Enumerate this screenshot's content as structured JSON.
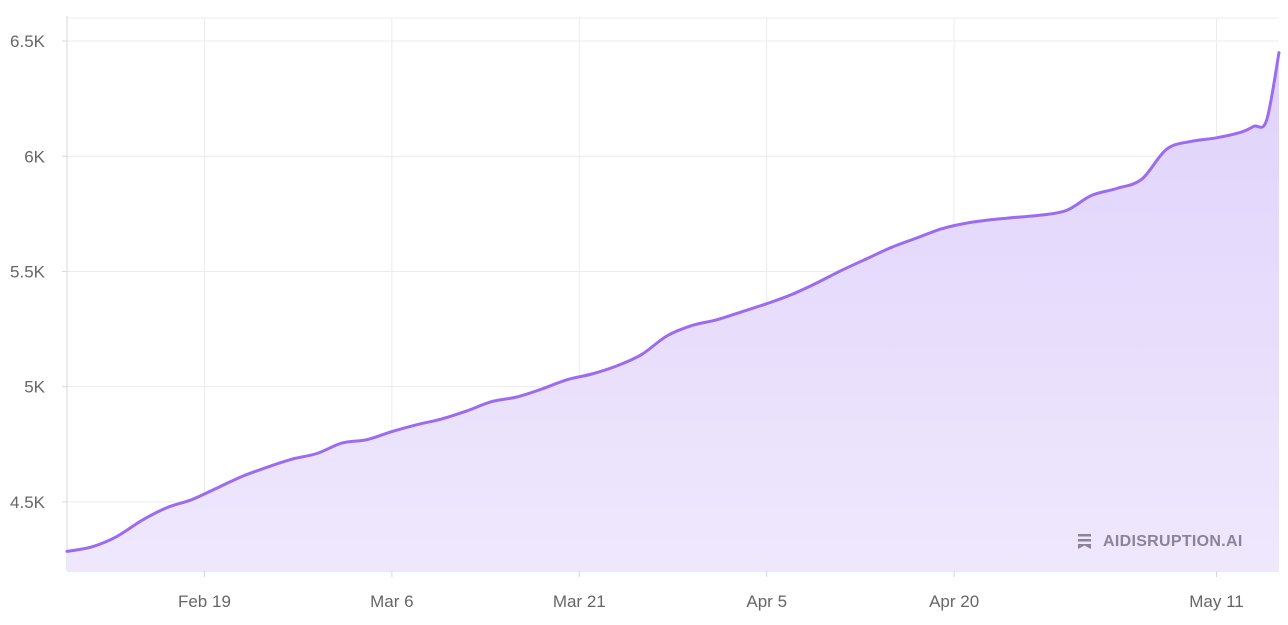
{
  "chart_data": {
    "type": "area",
    "title": "",
    "xlabel": "",
    "ylabel": "",
    "grid": true,
    "colors": {
      "line": "#9b6cf2",
      "fill_top": "#e0d2fb",
      "fill_bottom": "#efe8fd",
      "grid": "#ececf0",
      "axis": "#d9d3e6"
    },
    "x_range": [
      "2025-02-08",
      "2025-05-16"
    ],
    "y_range": [
      4200,
      6600
    ],
    "y_ticks": [
      4500,
      5000,
      5500,
      6000,
      6500
    ],
    "y_tick_labels": [
      "4.5K",
      "5K",
      "5.5K",
      "6K",
      "6.5K"
    ],
    "x_ticks": [
      "2025-02-19",
      "2025-03-06",
      "2025-03-21",
      "2025-04-05",
      "2025-04-20",
      "2025-05-11"
    ],
    "x_tick_labels": [
      "Feb 19",
      "Mar 6",
      "Mar 21",
      "Apr 5",
      "Apr 20",
      "May 11"
    ],
    "series": [
      {
        "x": [
          "2025-02-08",
          "2025-02-10",
          "2025-02-12",
          "2025-02-14",
          "2025-02-16",
          "2025-02-18",
          "2025-02-20",
          "2025-02-22",
          "2025-02-24",
          "2025-02-26",
          "2025-02-28",
          "2025-03-02",
          "2025-03-04",
          "2025-03-06",
          "2025-03-08",
          "2025-03-10",
          "2025-03-12",
          "2025-03-14",
          "2025-03-16",
          "2025-03-18",
          "2025-03-20",
          "2025-03-22",
          "2025-03-24",
          "2025-03-26",
          "2025-03-28",
          "2025-03-30",
          "2025-04-01",
          "2025-04-03",
          "2025-04-05",
          "2025-04-07",
          "2025-04-09",
          "2025-04-11",
          "2025-04-13",
          "2025-04-15",
          "2025-04-17",
          "2025-04-19",
          "2025-04-21",
          "2025-04-23",
          "2025-04-25",
          "2025-04-27",
          "2025-04-29",
          "2025-05-01",
          "2025-05-03",
          "2025-05-05",
          "2025-05-07",
          "2025-05-09",
          "2025-05-11",
          "2025-05-13",
          "2025-05-14",
          "2025-05-15",
          "2025-05-16"
        ],
        "y": [
          4285,
          4305,
          4350,
          4420,
          4475,
          4510,
          4560,
          4610,
          4650,
          4685,
          4710,
          4755,
          4770,
          4805,
          4835,
          4860,
          4895,
          4935,
          4955,
          4990,
          5030,
          5055,
          5090,
          5140,
          5220,
          5265,
          5290,
          5325,
          5360,
          5400,
          5450,
          5505,
          5555,
          5605,
          5645,
          5685,
          5710,
          5725,
          5735,
          5745,
          5765,
          5830,
          5860,
          5900,
          6030,
          6065,
          6080,
          6105,
          6130,
          6155,
          6450
        ]
      }
    ]
  },
  "watermark": {
    "text": "AIDISRUPTION.AI",
    "icon": "bookmark-icon"
  }
}
